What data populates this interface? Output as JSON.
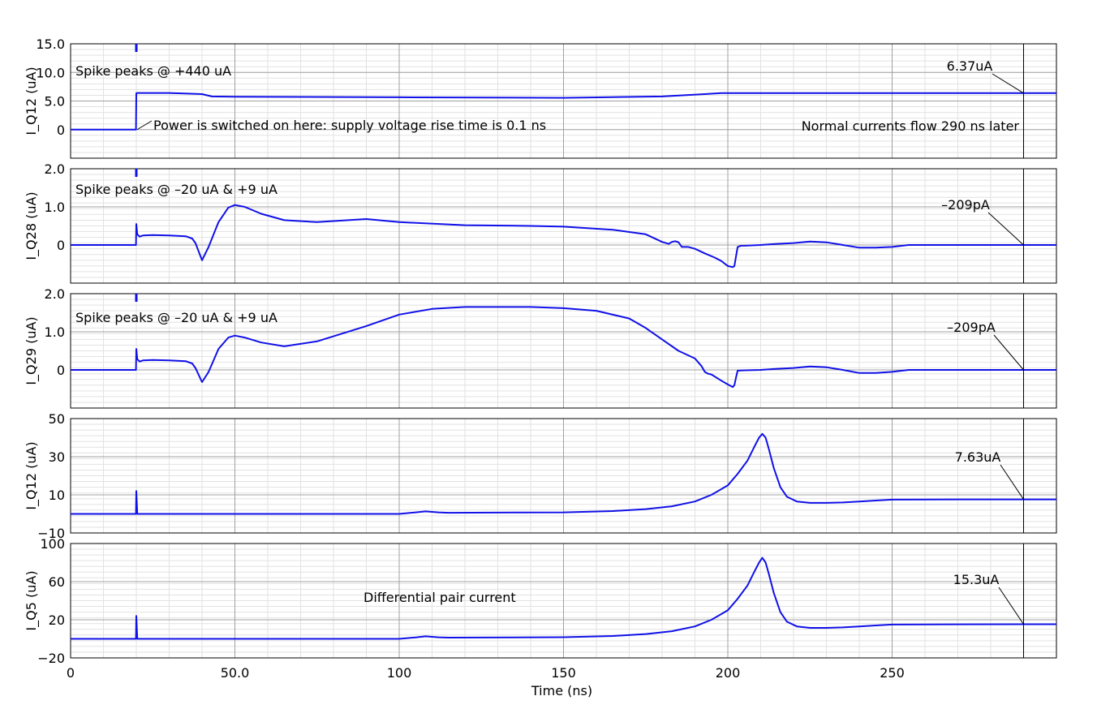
{
  "colors": {
    "trace": "#1010e8",
    "grid_major": "#a0a0a0",
    "grid_minor": "#e2e2e2",
    "marker_line": "#000000",
    "frame": "#000000"
  },
  "xaxis": {
    "label": "Time (ns)",
    "range": [
      0,
      300
    ],
    "ticks": [
      0,
      50,
      100,
      150,
      200,
      250
    ],
    "tick_labels": [
      "0",
      "50.0",
      "100",
      "150",
      "200",
      "250"
    ],
    "marker_x": 290
  },
  "chart_data": [
    {
      "type": "line",
      "ylabel": "I_Q12 (uA)",
      "ylim": [
        -5,
        15
      ],
      "yticks": [
        15,
        10,
        5,
        0
      ],
      "ytick_labels": [
        "15.0",
        "10.0",
        "5.0",
        "0"
      ],
      "grid": true,
      "spike_x": 20,
      "series": [
        {
          "x": [
            0,
            19.9,
            20,
            20.3,
            30,
            40,
            43,
            50,
            100,
            150,
            180,
            193,
            198,
            250,
            300
          ],
          "y": [
            0,
            0,
            6.37,
            6.4,
            6.4,
            6.2,
            5.8,
            5.75,
            5.65,
            5.55,
            5.8,
            6.2,
            6.37,
            6.37,
            6.37
          ]
        }
      ],
      "marker_label": "6.37uA",
      "annotations": [
        "Spike peaks @ +440 uA",
        "Power is switched on here: supply voltage rise time is 0.1 ns",
        "Normal currents flow 290 ns later"
      ]
    },
    {
      "type": "line",
      "ylabel": "I_Q28 (uA)",
      "ylim": [
        -1,
        2
      ],
      "yticks": [
        2,
        1,
        0
      ],
      "ytick_labels": [
        "2.0",
        "1.0",
        "0"
      ],
      "grid": true,
      "spike_x": 20,
      "series": [
        {
          "x": [
            0,
            19.9,
            20,
            20.3,
            21,
            22,
            25,
            30,
            35,
            37,
            38,
            40,
            42,
            45,
            48,
            50,
            53,
            58,
            65,
            75,
            90,
            100,
            120,
            140,
            150,
            165,
            175,
            180,
            182,
            183,
            184,
            185,
            186,
            188,
            190,
            193,
            196,
            198,
            200,
            201.5,
            202,
            202.5,
            203,
            204,
            205,
            210,
            215,
            220,
            225,
            230,
            235,
            240,
            245,
            250,
            255,
            260,
            300
          ],
          "y": [
            0,
            0,
            0.55,
            0.28,
            0.22,
            0.25,
            0.26,
            0.25,
            0.23,
            0.17,
            0.05,
            -0.4,
            -0.05,
            0.6,
            0.98,
            1.05,
            1.0,
            0.82,
            0.65,
            0.6,
            0.68,
            0.6,
            0.52,
            0.5,
            0.48,
            0.4,
            0.28,
            0.08,
            0.03,
            0.08,
            0.1,
            0.07,
            -0.05,
            -0.05,
            -0.1,
            -0.22,
            -0.33,
            -0.42,
            -0.55,
            -0.58,
            -0.55,
            -0.3,
            -0.05,
            -0.02,
            -0.02,
            0,
            0.03,
            0.05,
            0.09,
            0.07,
            0,
            -0.07,
            -0.07,
            -0.05,
            0,
            0,
            0
          ]
        }
      ],
      "marker_label": "–209pA",
      "annotations": [
        "Spike peaks @ –20 uA & +9 uA"
      ]
    },
    {
      "type": "line",
      "ylabel": "I_Q29 (uA)",
      "ylim": [
        -1,
        2
      ],
      "yticks": [
        2,
        1,
        0
      ],
      "ytick_labels": [
        "2.0",
        "1.0",
        "0"
      ],
      "grid": true,
      "spike_x": 20,
      "series": [
        {
          "x": [
            0,
            19.9,
            20,
            20.3,
            21,
            22,
            25,
            30,
            35,
            37,
            38,
            40,
            42,
            45,
            48,
            50,
            53,
            58,
            65,
            75,
            90,
            100,
            110,
            120,
            130,
            140,
            150,
            160,
            170,
            175,
            180,
            185,
            188,
            190,
            192,
            193,
            194,
            195,
            198,
            200,
            201.5,
            202,
            202.5,
            203,
            205,
            210,
            215,
            220,
            225,
            230,
            235,
            240,
            245,
            250,
            255,
            260,
            300
          ],
          "y": [
            0,
            0,
            0.55,
            0.28,
            0.22,
            0.25,
            0.26,
            0.25,
            0.23,
            0.17,
            0.05,
            -0.32,
            -0.05,
            0.55,
            0.85,
            0.9,
            0.85,
            0.72,
            0.62,
            0.75,
            1.15,
            1.45,
            1.6,
            1.65,
            1.65,
            1.65,
            1.62,
            1.55,
            1.35,
            1.1,
            0.8,
            0.5,
            0.38,
            0.3,
            0.1,
            -0.05,
            -0.1,
            -0.12,
            -0.28,
            -0.38,
            -0.45,
            -0.4,
            -0.2,
            -0.02,
            -0.01,
            0,
            0.03,
            0.05,
            0.09,
            0.07,
            0,
            -0.08,
            -0.08,
            -0.05,
            0,
            0,
            0
          ]
        }
      ],
      "marker_label": "–209pA",
      "annotations": [
        "Spike peaks @ –20 uA & +9 uA"
      ]
    },
    {
      "type": "line",
      "ylabel": "I_Q12 (uA)",
      "ylim": [
        -10,
        50
      ],
      "yticks": [
        50,
        30,
        10,
        -10
      ],
      "ytick_labels": [
        "50",
        "30",
        "10",
        "−10"
      ],
      "grid": true,
      "spike_x": 20,
      "series": [
        {
          "x": [
            0,
            19.9,
            20,
            20.3,
            100,
            105,
            108,
            112,
            115,
            150,
            165,
            175,
            183,
            190,
            195,
            200,
            203,
            206,
            208,
            209.5,
            210.5,
            211.5,
            212.5,
            214,
            216,
            218,
            221,
            225,
            230,
            235,
            240,
            245,
            250,
            270,
            290,
            300
          ],
          "y": [
            0,
            0,
            12,
            0,
            0,
            0.8,
            1.3,
            0.8,
            0.6,
            0.8,
            1.5,
            2.5,
            4,
            6.5,
            10,
            15,
            21,
            28,
            35,
            40,
            42,
            40,
            34,
            24,
            14,
            9,
            6.5,
            5.8,
            5.8,
            6,
            6.5,
            7,
            7.5,
            7.6,
            7.63,
            7.63
          ]
        }
      ],
      "marker_label": "7.63uA",
      "annotations": []
    },
    {
      "type": "line",
      "ylabel": "I_Q5 (uA)",
      "ylim": [
        -20,
        100
      ],
      "yticks": [
        100,
        60,
        20,
        -20
      ],
      "ytick_labels": [
        "100",
        "60",
        "20",
        "−20"
      ],
      "grid": true,
      "spike_x": 20,
      "series": [
        {
          "x": [
            0,
            19.9,
            20,
            20.3,
            100,
            105,
            108,
            112,
            115,
            150,
            165,
            175,
            183,
            190,
            195,
            200,
            203,
            206,
            208,
            209.5,
            210.5,
            211.5,
            212.5,
            214,
            216,
            218,
            221,
            225,
            230,
            235,
            240,
            245,
            250,
            270,
            290,
            300
          ],
          "y": [
            0,
            0,
            24,
            0,
            0,
            1.5,
            2.6,
            1.6,
            1.3,
            1.7,
            3,
            5,
            8,
            13,
            20,
            30,
            42,
            56,
            70,
            80,
            85,
            80,
            68,
            48,
            28,
            18,
            13,
            11.5,
            11.5,
            12,
            13,
            14,
            15,
            15.2,
            15.3,
            15.3
          ]
        }
      ],
      "marker_label": "15.3uA",
      "annotations": [
        "Differential pair current"
      ]
    }
  ]
}
